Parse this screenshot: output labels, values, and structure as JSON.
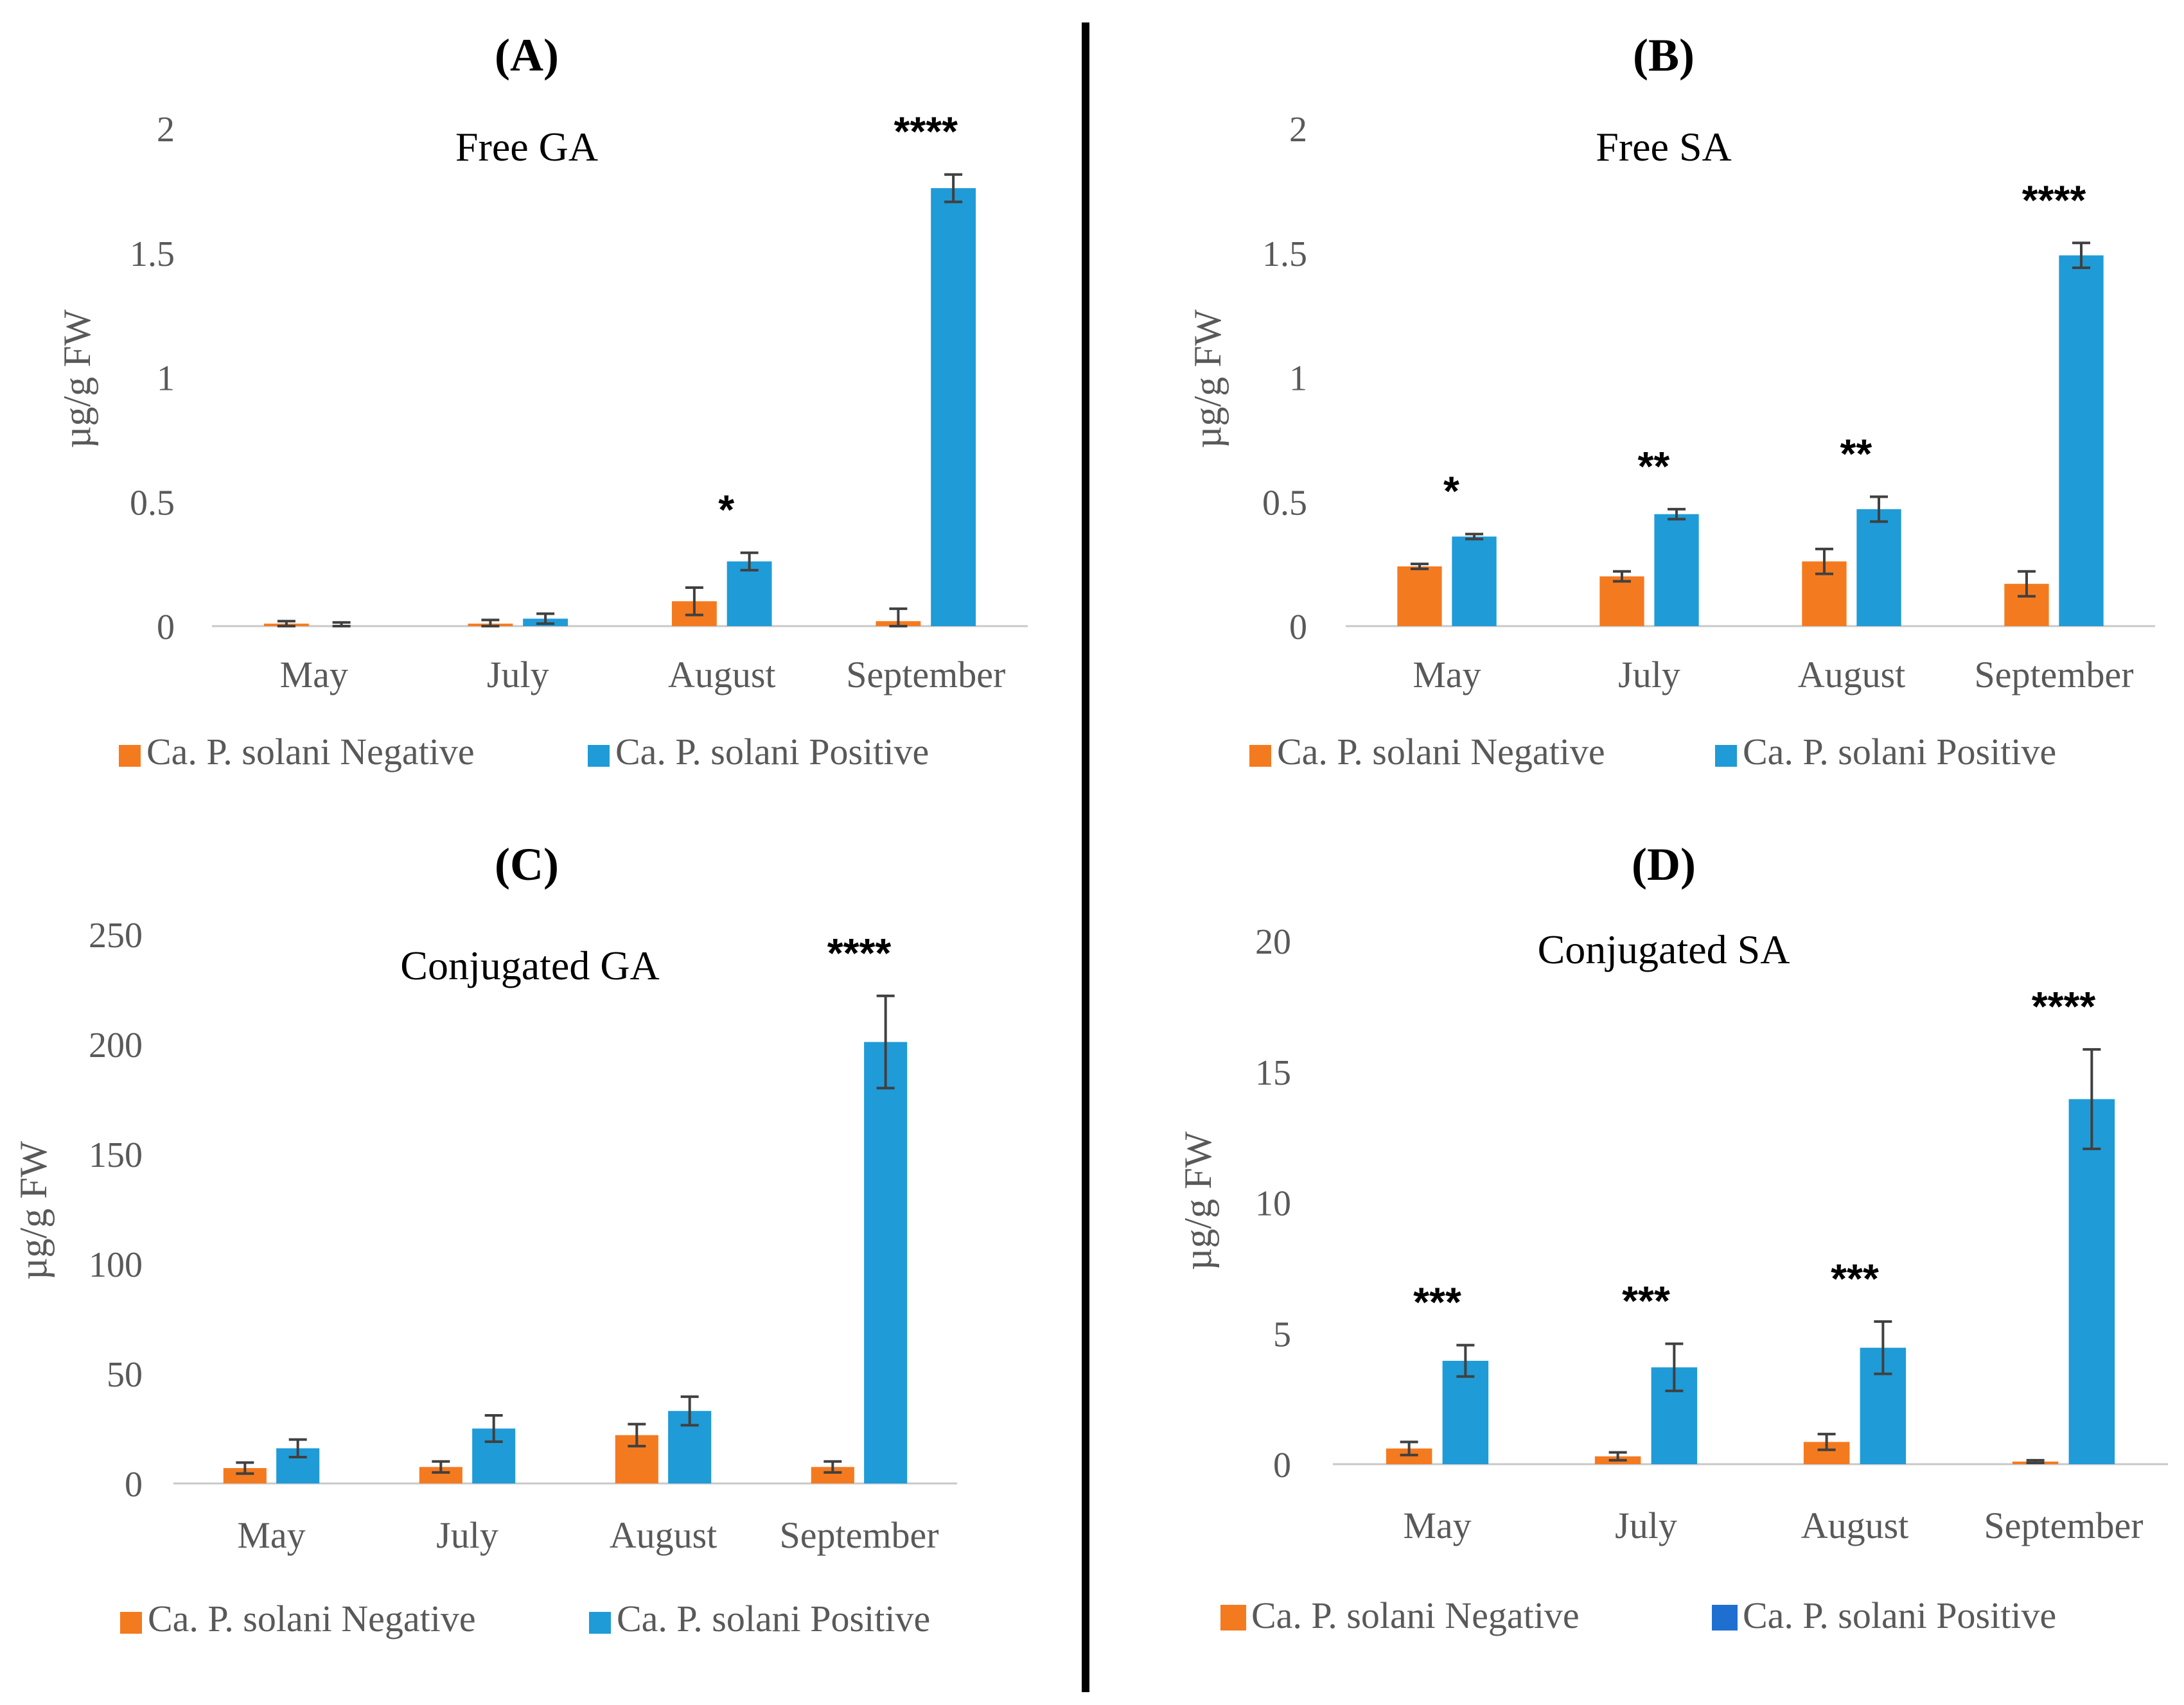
{
  "colors": {
    "negative": "#F47A20",
    "positive": "#1F9BD7",
    "positive_legend_d": "#1F6FD0",
    "axis": "#C8C8C8",
    "errorbar": "#404040",
    "divider": "#000000"
  },
  "chart_data": [
    {
      "panel": "(A)",
      "type": "bar",
      "title": "Free GA",
      "ylabel": "µg/g FW",
      "ylim": [
        0,
        2
      ],
      "yticks": [
        "0",
        "0.5",
        "1",
        "1.5",
        "2"
      ],
      "categories": [
        "May",
        "July",
        "August",
        "September"
      ],
      "series": [
        {
          "name": "Ca. P. solani Negative",
          "values": [
            0.01,
            0.01,
            0.1,
            0.02
          ],
          "errors": [
            0.01,
            0.015,
            0.055,
            0.05
          ]
        },
        {
          "name": "Ca. P. solani Positive",
          "values": [
            0.0,
            0.03,
            0.26,
            1.76
          ],
          "errors": [
            0.015,
            0.02,
            0.035,
            0.055
          ]
        }
      ],
      "significance": [
        "",
        "",
        "*",
        "****"
      ]
    },
    {
      "panel": "(B)",
      "type": "bar",
      "title": "Free SA",
      "ylabel": "µg/g FW",
      "ylim": [
        0,
        2
      ],
      "yticks": [
        "0",
        "0.5",
        "1",
        "1.5",
        "2"
      ],
      "categories": [
        "May",
        "July",
        "August",
        "September"
      ],
      "series": [
        {
          "name": "Ca. P. solani Negative",
          "values": [
            0.24,
            0.2,
            0.26,
            0.17
          ],
          "errors": [
            0.01,
            0.02,
            0.05,
            0.05
          ]
        },
        {
          "name": "Ca. P. solani Positive",
          "values": [
            0.36,
            0.45,
            0.47,
            1.49
          ],
          "errors": [
            0.01,
            0.02,
            0.05,
            0.05
          ]
        }
      ],
      "significance": [
        "*",
        "**",
        "**",
        "****"
      ]
    },
    {
      "panel": "(C)",
      "type": "bar",
      "title": "Conjugated GA",
      "ylabel": "µg/g FW",
      "ylim": [
        0,
        250
      ],
      "yticks": [
        "0",
        "50",
        "100",
        "150",
        "200",
        "250"
      ],
      "categories": [
        "May",
        "July",
        "August",
        "September"
      ],
      "series": [
        {
          "name": "Ca. P. solani Negative",
          "values": [
            7,
            7.5,
            22,
            7.5
          ],
          "errors": [
            2.5,
            2.5,
            5,
            2.5
          ]
        },
        {
          "name": "Ca. P. solani Positive",
          "values": [
            16,
            25,
            33,
            201
          ],
          "errors": [
            4,
            6,
            6.5,
            21
          ]
        }
      ],
      "significance": [
        "",
        "",
        "",
        "****"
      ]
    },
    {
      "panel": "(D)",
      "type": "bar",
      "title": "Conjugated SA",
      "ylabel": "µg/g FW",
      "ylim": [
        0,
        20
      ],
      "yticks": [
        "0",
        "5",
        "10",
        "15",
        "20"
      ],
      "categories": [
        "May",
        "July",
        "August",
        "September"
      ],
      "series": [
        {
          "name": "Ca. P. solani Negative",
          "values": [
            0.6,
            0.3,
            0.85,
            0.1
          ],
          "errors": [
            0.25,
            0.15,
            0.3,
            0.05
          ]
        },
        {
          "name": "Ca. P. solani Positive",
          "values": [
            3.95,
            3.7,
            4.45,
            13.95
          ],
          "errors": [
            0.6,
            0.9,
            1.0,
            1.9
          ]
        }
      ],
      "significance": [
        "***",
        "***",
        "***",
        "****"
      ]
    }
  ]
}
